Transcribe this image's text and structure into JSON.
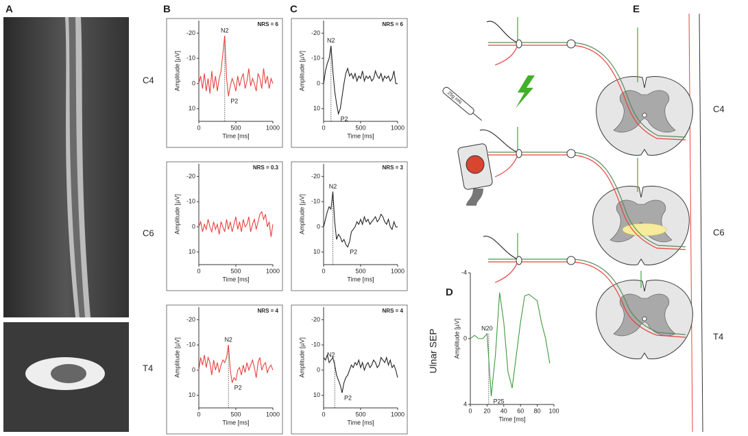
{
  "panels": {
    "a": "A",
    "b": "B",
    "c": "C",
    "d": "D",
    "e": "E"
  },
  "levels": [
    "C4",
    "C6",
    "T4"
  ],
  "sep_label": "Ulnar SEP",
  "filament": "25g mN",
  "chart_data": [
    {
      "type": "line",
      "subtitle": "NRS = 6",
      "xlabel": "Time [ms]",
      "ylabel": "Amplitude [µV]",
      "x": [
        0,
        25,
        50,
        75,
        100,
        125,
        150,
        175,
        200,
        225,
        250,
        275,
        300,
        325,
        350,
        375,
        400,
        425,
        450,
        475,
        500,
        525,
        550,
        575,
        600,
        625,
        650,
        675,
        700,
        725,
        750,
        775,
        800,
        825,
        850,
        875,
        900,
        925,
        950,
        975,
        1000
      ],
      "series": [
        {
          "color": "#e8413c",
          "values": [
            0,
            -3,
            2,
            -4,
            3,
            -2,
            4,
            -5,
            2,
            -3,
            3,
            -2,
            -5,
            -12,
            -19,
            -2,
            5,
            1,
            -2,
            0,
            3,
            -3,
            1,
            -2,
            -4,
            2,
            -1,
            -6,
            1,
            -2,
            0,
            3,
            -4,
            -2,
            2,
            -6,
            0,
            -3,
            2,
            -2,
            0
          ]
        }
      ],
      "xlim": [
        0,
        1000
      ],
      "xticks": [
        0,
        500,
        1000
      ],
      "ylim": [
        -25,
        15
      ],
      "yticks": [
        -20,
        -10,
        0,
        10
      ],
      "y_reversed": true,
      "annotations": [
        {
          "text": "N2",
          "x": 350,
          "y": -19
        },
        {
          "text": "P2",
          "x": 400,
          "y": 5
        }
      ],
      "marker_x": 350
    },
    {
      "type": "line",
      "subtitle": "NRS = 0.3",
      "xlabel": "Time [ms]",
      "ylabel": "Amplitude [µV]",
      "x": [
        0,
        25,
        50,
        75,
        100,
        125,
        150,
        175,
        200,
        225,
        250,
        275,
        300,
        325,
        350,
        375,
        400,
        425,
        450,
        475,
        500,
        525,
        550,
        575,
        600,
        625,
        650,
        675,
        700,
        725,
        750,
        775,
        800,
        825,
        850,
        875,
        900,
        925,
        950,
        975,
        1000
      ],
      "series": [
        {
          "color": "#e8413c",
          "values": [
            0,
            -2,
            2,
            -1,
            1,
            -3,
            0,
            2,
            -2,
            1,
            -1,
            3,
            -2,
            0,
            2,
            -3,
            1,
            -2,
            2,
            -1,
            -4,
            1,
            -2,
            2,
            -3,
            0,
            -1,
            -4,
            2,
            -1,
            -3,
            1,
            -2,
            -5,
            -6,
            -3,
            -5,
            0,
            -2,
            4,
            -1
          ]
        }
      ],
      "xlim": [
        0,
        1000
      ],
      "xticks": [
        0,
        500,
        1000
      ],
      "ylim": [
        -25,
        15
      ],
      "yticks": [
        -20,
        -10,
        0,
        10
      ],
      "y_reversed": true
    },
    {
      "type": "line",
      "subtitle": "NRS = 4",
      "xlabel": "Time [ms]",
      "ylabel": "Amplitude [µV]",
      "x": [
        0,
        25,
        50,
        75,
        100,
        125,
        150,
        175,
        200,
        225,
        250,
        275,
        300,
        325,
        350,
        375,
        400,
        425,
        450,
        475,
        500,
        525,
        550,
        575,
        600,
        625,
        650,
        675,
        700,
        725,
        750,
        775,
        800,
        825,
        850,
        875,
        900,
        925,
        950,
        975,
        1000
      ],
      "series": [
        {
          "color": "#e8413c",
          "values": [
            0,
            -5,
            -2,
            -6,
            -1,
            -5,
            -3,
            2,
            -4,
            0,
            -3,
            1,
            -2,
            -4,
            -3,
            -5,
            -10,
            0,
            5,
            3,
            4,
            0,
            -1,
            2,
            -2,
            1,
            -3,
            0,
            -2,
            -4,
            -1,
            3,
            -3,
            -5,
            0,
            -2,
            -3,
            1,
            -1,
            -2,
            0
          ]
        }
      ],
      "xlim": [
        0,
        1000
      ],
      "xticks": [
        0,
        500,
        1000
      ],
      "ylim": [
        -25,
        15
      ],
      "yticks": [
        -20,
        -10,
        0,
        10
      ],
      "y_reversed": true,
      "annotations": [
        {
          "text": "N2",
          "x": 400,
          "y": -10
        },
        {
          "text": "P2",
          "x": 450,
          "y": 5
        }
      ],
      "marker_x": 400
    },
    {
      "type": "line",
      "subtitle": "NRS = 6",
      "xlabel": "Time [ms]",
      "ylabel": "Amplitude [µV]",
      "x": [
        0,
        25,
        50,
        75,
        100,
        125,
        150,
        175,
        200,
        225,
        250,
        275,
        300,
        325,
        350,
        375,
        400,
        425,
        450,
        475,
        500,
        525,
        550,
        575,
        600,
        625,
        650,
        675,
        700,
        725,
        750,
        775,
        800,
        825,
        850,
        875,
        900,
        925,
        950,
        975,
        1000
      ],
      "series": [
        {
          "color": "#222222",
          "values": [
            0,
            -5,
            -8,
            -10,
            -15,
            -5,
            3,
            8,
            12,
            10,
            5,
            0,
            -4,
            -6,
            -3,
            -4,
            -2,
            -4,
            -1,
            -3,
            -2,
            -5,
            -1,
            -3,
            -2,
            -3,
            -1,
            -2,
            -5,
            -3,
            -2,
            -4,
            -1,
            -3,
            -2,
            -3,
            -1,
            -2,
            -5,
            0,
            0
          ]
        }
      ],
      "xlim": [
        0,
        1000
      ],
      "xticks": [
        0,
        500,
        1000
      ],
      "ylim": [
        -25,
        15
      ],
      "yticks": [
        -20,
        -10,
        0,
        10
      ],
      "y_reversed": true,
      "annotations": [
        {
          "text": "N2",
          "x": 100,
          "y": -15
        },
        {
          "text": "P2",
          "x": 200,
          "y": 12
        }
      ],
      "marker_x": 100
    },
    {
      "type": "line",
      "subtitle": "NRS = 3",
      "xlabel": "Time [ms]",
      "ylabel": "Amplitude [µV]",
      "x": [
        0,
        25,
        50,
        75,
        100,
        125,
        150,
        175,
        200,
        225,
        250,
        275,
        300,
        325,
        350,
        375,
        400,
        425,
        450,
        475,
        500,
        525,
        550,
        575,
        600,
        625,
        650,
        675,
        700,
        725,
        750,
        775,
        800,
        825,
        850,
        875,
        900,
        925,
        950,
        975,
        1000
      ],
      "series": [
        {
          "color": "#222222",
          "values": [
            0,
            -3,
            -6,
            -8,
            -7,
            -14,
            -2,
            5,
            3,
            4,
            6,
            5,
            7,
            8,
            6,
            2,
            1,
            0,
            -2,
            -1,
            -3,
            -1,
            -4,
            -2,
            -3,
            -1,
            -2,
            -3,
            -4,
            -2,
            -3,
            -5,
            -4,
            -2,
            -1,
            -3,
            0,
            1,
            -2,
            0,
            0
          ]
        }
      ],
      "xlim": [
        0,
        1000
      ],
      "xticks": [
        0,
        500,
        1000
      ],
      "ylim": [
        -25,
        15
      ],
      "yticks": [
        -20,
        -10,
        0,
        10
      ],
      "y_reversed": true,
      "annotations": [
        {
          "text": "N2",
          "x": 125,
          "y": -14
        },
        {
          "text": "P2",
          "x": 325,
          "y": 8
        }
      ],
      "marker_x": 125
    },
    {
      "type": "line",
      "subtitle": "NRS = 4",
      "xlabel": "Time [ms]",
      "ylabel": "Amplitude [µV]",
      "x": [
        0,
        25,
        50,
        75,
        100,
        125,
        150,
        175,
        200,
        225,
        250,
        275,
        300,
        325,
        350,
        375,
        400,
        425,
        450,
        475,
        500,
        525,
        550,
        575,
        600,
        625,
        650,
        675,
        700,
        725,
        750,
        775,
        800,
        825,
        850,
        875,
        900,
        925,
        950,
        975,
        1000
      ],
      "series": [
        {
          "color": "#222222",
          "values": [
            -5,
            -4,
            -6,
            -3,
            -4,
            -5,
            -2,
            2,
            4,
            6,
            9,
            5,
            3,
            2,
            0,
            -2,
            -1,
            -3,
            -2,
            -4,
            -1,
            -3,
            0,
            -2,
            -3,
            -1,
            -2,
            -4,
            -3,
            -1,
            -2,
            -5,
            -4,
            -3,
            -5,
            -2,
            -4,
            -1,
            -2,
            0,
            3
          ]
        }
      ],
      "xlim": [
        0,
        1000
      ],
      "xticks": [
        0,
        500,
        1000
      ],
      "ylim": [
        -25,
        15
      ],
      "yticks": [
        -20,
        -10,
        0,
        10
      ],
      "y_reversed": true,
      "annotations": [
        {
          "text": "N2",
          "x": 100,
          "y": -4
        },
        {
          "text": "P2",
          "x": 250,
          "y": 9
        }
      ],
      "marker_x": 150
    },
    {
      "type": "line",
      "xlabel": "Time [ms]",
      "ylabel": "Amplitude [µV]",
      "x": [
        0,
        5,
        10,
        15,
        20,
        25,
        30,
        35,
        40,
        45,
        50,
        55,
        60,
        65,
        70,
        75,
        80,
        85,
        90,
        95
      ],
      "series": [
        {
          "color": "#3a9a3a",
          "values": [
            0,
            -0.2,
            0,
            0,
            -0.3,
            3.5,
            1,
            -2.8,
            -1,
            2,
            3,
            1,
            -1,
            -2.6,
            -2.7,
            -2.5,
            -2.3,
            -1,
            0,
            1.5
          ]
        }
      ],
      "xlim": [
        0,
        100
      ],
      "xticks": [
        0,
        20,
        40,
        60,
        80,
        100
      ],
      "ylim": [
        -4,
        4
      ],
      "yticks": [
        -4,
        0,
        4
      ],
      "y_reversed": true,
      "annotations": [
        {
          "text": "N20",
          "x": 20,
          "y": -0.3
        },
        {
          "text": "P25",
          "x": 25,
          "y": 3.5
        }
      ],
      "marker_x": 22
    }
  ]
}
